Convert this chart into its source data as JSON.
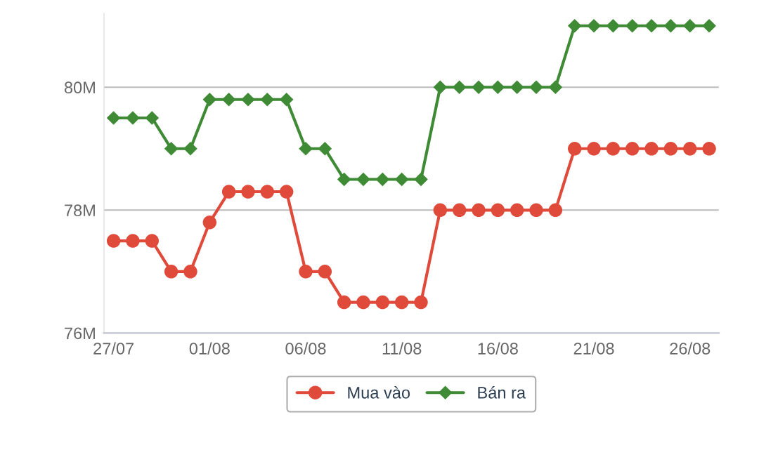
{
  "chart_data": {
    "type": "line",
    "categories": [
      "27/07",
      null,
      null,
      null,
      null,
      "01/08",
      null,
      null,
      null,
      null,
      "06/08",
      null,
      null,
      null,
      null,
      "11/08",
      null,
      null,
      null,
      null,
      "16/08",
      null,
      null,
      null,
      null,
      "21/08",
      null,
      null,
      null,
      null,
      "26/08",
      null
    ],
    "series": [
      {
        "name": "Mua vào",
        "color": "#e04a3a",
        "marker": "circle",
        "values": [
          77.5,
          77.5,
          77.5,
          77.0,
          77.0,
          77.8,
          78.3,
          78.3,
          78.3,
          78.3,
          77.0,
          77.0,
          76.5,
          76.5,
          76.5,
          76.5,
          76.5,
          78.0,
          78.0,
          78.0,
          78.0,
          78.0,
          78.0,
          78.0,
          79.0,
          79.0,
          79.0,
          79.0,
          79.0,
          79.0,
          79.0,
          79.0
        ]
      },
      {
        "name": "Bán ra",
        "color": "#3f8a35",
        "marker": "diamond",
        "values": [
          79.5,
          79.5,
          79.5,
          79.0,
          79.0,
          79.8,
          79.8,
          79.8,
          79.8,
          79.8,
          79.0,
          79.0,
          78.5,
          78.5,
          78.5,
          78.5,
          78.5,
          80.0,
          80.0,
          80.0,
          80.0,
          80.0,
          80.0,
          80.0,
          81.0,
          81.0,
          81.0,
          81.0,
          81.0,
          81.0,
          81.0,
          81.0
        ]
      }
    ],
    "ylim": [
      76,
      81.2
    ],
    "yticks": [
      {
        "value": 76,
        "label": "76M"
      },
      {
        "value": 78,
        "label": "78M"
      },
      {
        "value": 80,
        "label": "80M"
      }
    ],
    "grid": "y",
    "legend": "bottom",
    "line_style": "solid"
  }
}
